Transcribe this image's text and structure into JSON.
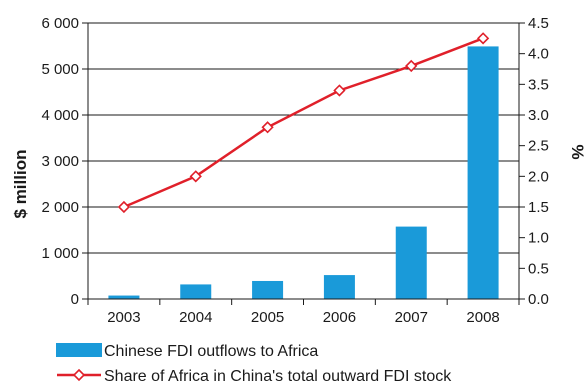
{
  "chart_data": {
    "type": "bar",
    "categories": [
      "2003",
      "2004",
      "2005",
      "2006",
      "2007",
      "2008"
    ],
    "series": [
      {
        "name": "Chinese FDI outflows to Africa",
        "type": "bar",
        "axis": "left",
        "values": [
          75,
          317,
          392,
          520,
          1574,
          5491
        ],
        "color": "#1a9ad9"
      },
      {
        "name": "Share of Africa in China's total outward FDI stock",
        "type": "line",
        "axis": "right",
        "values": [
          1.5,
          2.0,
          2.8,
          3.4,
          3.8,
          4.25
        ],
        "color": "#e0202a"
      }
    ],
    "ylabel_left": "$ million",
    "ylabel_right": "%",
    "ylim_left": [
      0,
      6000
    ],
    "ylim_right": [
      0,
      4.5
    ],
    "yticks_left": [
      "0",
      "1 000",
      "2 000",
      "3 000",
      "4 000",
      "5 000",
      "6 000"
    ],
    "yticks_right": [
      "0.0",
      "0.5",
      "1.0",
      "1.5",
      "2.0",
      "2.5",
      "3.0",
      "3.5",
      "4.0",
      "4.5"
    ],
    "grid": "horizontal",
    "legend_position": "bottom-left"
  }
}
